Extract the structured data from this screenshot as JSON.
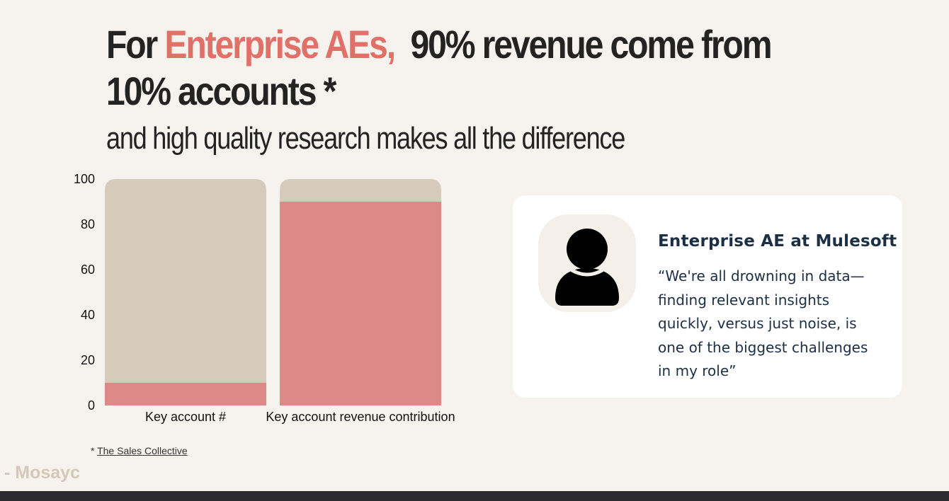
{
  "headline": {
    "prefix": "For ",
    "accent": "Enterprise AEs,",
    "rest": "  90% revenue come from 10% accounts *",
    "accent_color": "#e07068"
  },
  "subheadline": "and high quality research makes all the difference",
  "chart_data": {
    "type": "bar",
    "stacked": true,
    "categories": [
      "Key account #",
      "Key account revenue contribution"
    ],
    "series": [
      {
        "values": [
          10,
          90
        ],
        "color": "#dd8987"
      },
      {
        "values": [
          90,
          10
        ],
        "color": "#d6cbbb"
      }
    ],
    "ylim": [
      0,
      100
    ],
    "yticks": [
      0,
      20,
      40,
      60,
      80,
      100
    ],
    "grid": false,
    "legend": "none"
  },
  "footnote": {
    "marker": "*",
    "source": "The Sales Collective"
  },
  "brand": "- Mosayc",
  "quote_card": {
    "avatar_icon": "person-silhouette-icon",
    "title": "Enterprise AE at Mulesoft",
    "lines": [
      "“We're all drowning in data—",
      "finding relevant insights",
      "quickly, versus just noise, is",
      "one of the biggest challenges",
      "in my role”"
    ]
  }
}
